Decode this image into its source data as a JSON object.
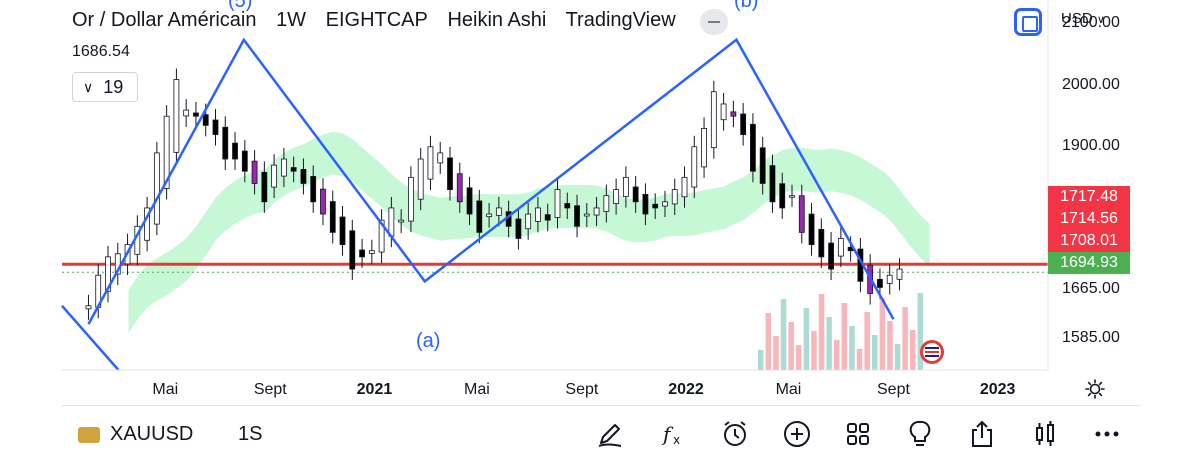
{
  "header": {
    "symbol_name": "Or / Dollar Américain",
    "interval": "1W",
    "exchange": "EIGHTCAP",
    "chart_style": "Heikin Ashi",
    "brand": "TradingView",
    "last_price": "1686.54",
    "indicator_count": "19",
    "currency": "USD"
  },
  "bottom_bar": {
    "symbol": "XAUUSD",
    "interval": "1S"
  },
  "colors": {
    "up": "#089981",
    "down": "#f23645",
    "wave_line": "#2962ff",
    "support_line": "#e53935",
    "cloud_green": "#b9f6ca",
    "cloud_red": "#f5a3a8",
    "heikin_up": "#ffffff",
    "heikin_down": "#000000",
    "heikin_purple": "#9c27b0"
  },
  "chart_data": {
    "type": "line",
    "ylim": [
      1535,
      2140
    ],
    "y_ticks": [
      "2100.00",
      "2000.00",
      "1900.00",
      "1665.00",
      "1585.00"
    ],
    "x_ticks": [
      {
        "label": "Mai",
        "date": "2020-05",
        "bold": false
      },
      {
        "label": "Sept",
        "date": "2020-09",
        "bold": false
      },
      {
        "label": "2021",
        "date": "2021-01",
        "bold": true
      },
      {
        "label": "Mai",
        "date": "2021-05",
        "bold": false
      },
      {
        "label": "Sept",
        "date": "2021-09",
        "bold": false
      },
      {
        "label": "2022",
        "date": "2022-01",
        "bold": true
      },
      {
        "label": "Mai",
        "date": "2022-05",
        "bold": false
      },
      {
        "label": "Sept",
        "date": "2022-09",
        "bold": false
      },
      {
        "label": "2023",
        "date": "2023-01",
        "bold": true
      }
    ],
    "price_tags": [
      {
        "value": "1717.48",
        "color": "#f23645"
      },
      {
        "value": "1714.56",
        "color": "#f23645"
      },
      {
        "value": "1708.01",
        "color": "#f23645"
      },
      {
        "value": "1694.93",
        "color": "#4caf50"
      }
    ],
    "horizontal_lines": [
      {
        "value": 1708,
        "color": "#e53935",
        "style": "solid"
      },
      {
        "value": 1694.93,
        "color": "#4caf50",
        "style": "dotted"
      }
    ],
    "wave_points": [
      {
        "date": "2020-02",
        "value": 1610
      },
      {
        "date": "2020-08",
        "value": 2075
      },
      {
        "date": "2021-03",
        "value": 1680
      },
      {
        "date": "2022-03",
        "value": 2075
      },
      {
        "date": "2022-09",
        "value": 1618
      }
    ],
    "wave_labels": [
      {
        "label": "(5)"
      },
      {
        "label": "(a)"
      },
      {
        "label": "(b)"
      }
    ],
    "closes": [
      1640,
      1690,
      1720,
      1725,
      1740,
      1770,
      1800,
      1890,
      1950,
      2010,
      1960,
      1950,
      1935,
      1920,
      1880,
      1880,
      1860,
      1840,
      1810,
      1870,
      1880,
      1860,
      1840,
      1810,
      1790,
      1760,
      1740,
      1700,
      1720,
      1730,
      1780,
      1800,
      1780,
      1850,
      1880,
      1900,
      1890,
      1830,
      1810,
      1790,
      1760,
      1790,
      1800,
      1770,
      1750,
      1790,
      1800,
      1780,
      1830,
      1800,
      1770,
      1790,
      1800,
      1820,
      1830,
      1850,
      1810,
      1790,
      1800,
      1810,
      1830,
      1850,
      1900,
      1930,
      1990,
      1970,
      1950,
      1920,
      1860,
      1840,
      1810,
      1800,
      1820,
      1760,
      1740,
      1720,
      1700,
      1750,
      1730,
      1680,
      1660,
      1670,
      1690,
      1700
    ]
  }
}
